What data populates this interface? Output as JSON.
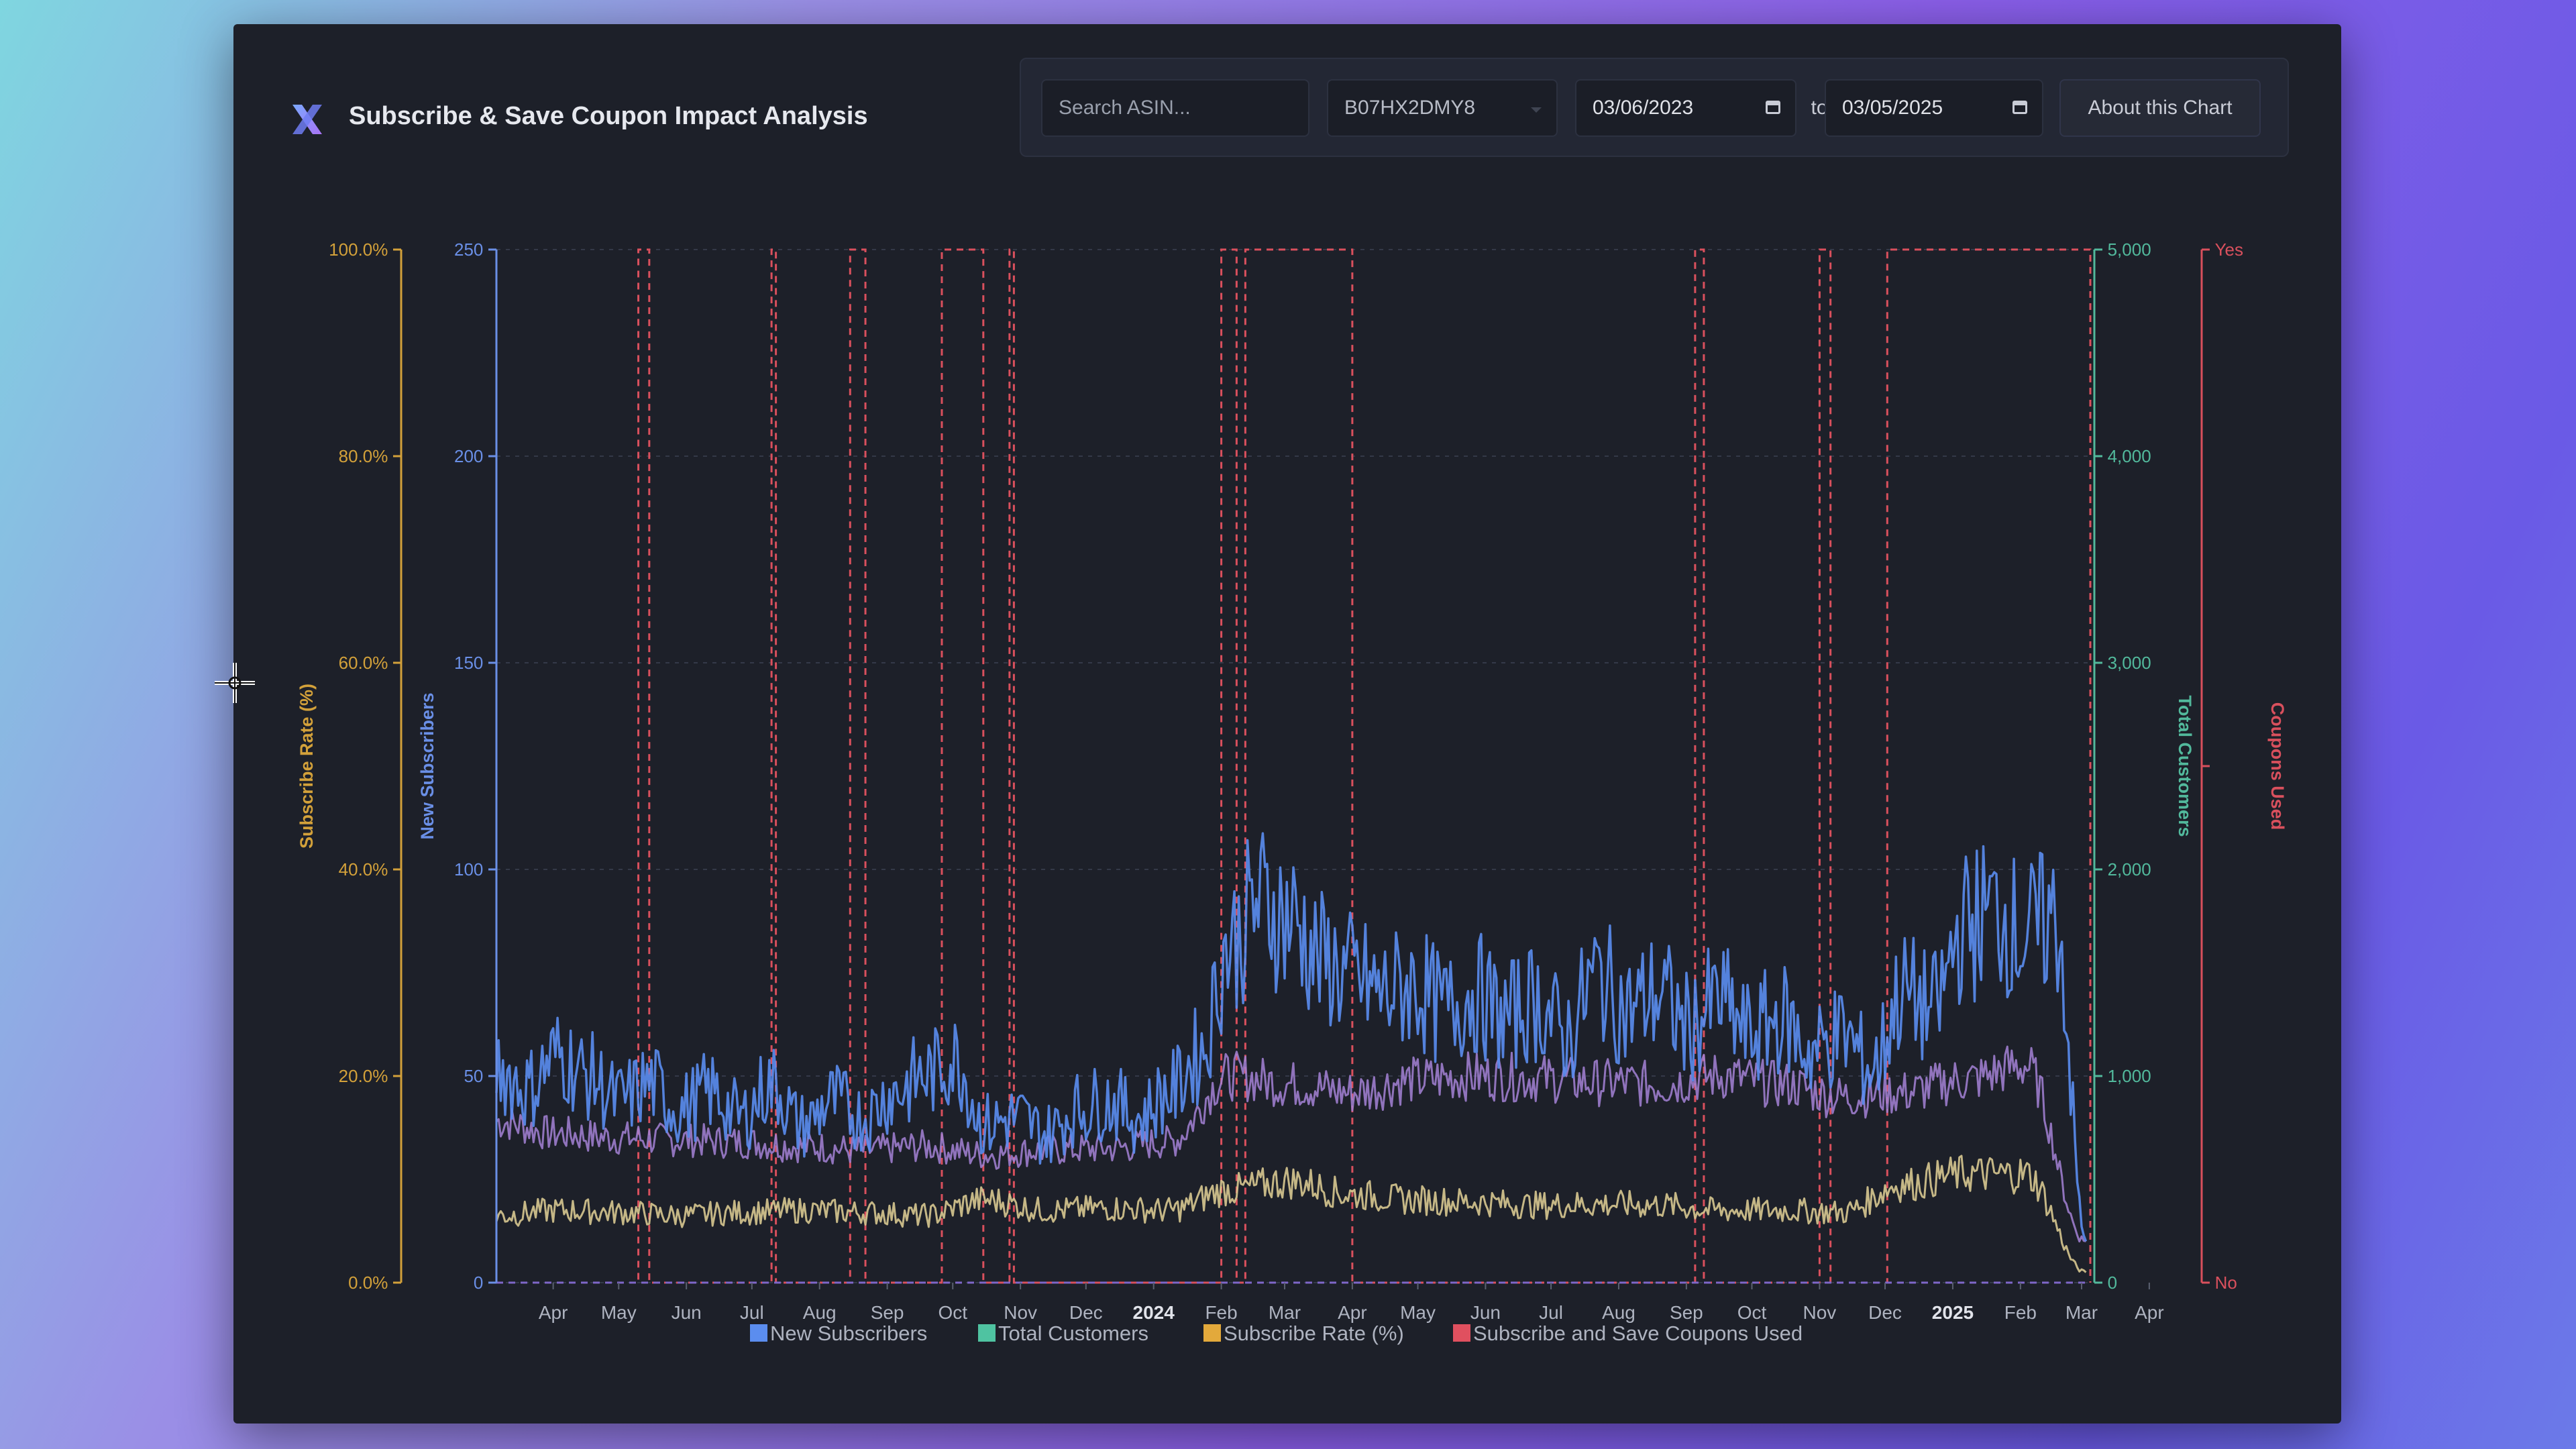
{
  "header": {
    "title": "Subscribe & Save Coupon Impact Analysis",
    "logo_icon": "x-logo-icon"
  },
  "toolbar": {
    "search_placeholder": "Search ASIN...",
    "asin_value": "B07HX2DMY8",
    "start_date": "03/06/2023",
    "end_date": "03/05/2025",
    "to_label": "to",
    "about_label": "About this Chart"
  },
  "colors": {
    "new_subscribers": "#5b8def",
    "total_customers": "#4fc3a1",
    "subscribe_rate": "#e3a93b",
    "coupons": "#e0505f",
    "subscribe_rate_line": "#d8c890",
    "total_customers_line": "#a583d6"
  },
  "chart_data": {
    "type": "line",
    "title": "",
    "x_range": [
      "2023-03-06",
      "2025-03-05"
    ],
    "x_ticks": [
      {
        "label": "Apr",
        "date": "2023-04-01",
        "bold": false
      },
      {
        "label": "May",
        "date": "2023-05-01",
        "bold": false
      },
      {
        "label": "Jun",
        "date": "2023-06-01",
        "bold": false
      },
      {
        "label": "Jul",
        "date": "2023-07-01",
        "bold": false
      },
      {
        "label": "Aug",
        "date": "2023-08-01",
        "bold": false
      },
      {
        "label": "Sep",
        "date": "2023-09-01",
        "bold": false
      },
      {
        "label": "Oct",
        "date": "2023-10-01",
        "bold": false
      },
      {
        "label": "Nov",
        "date": "2023-11-01",
        "bold": false
      },
      {
        "label": "Dec",
        "date": "2023-12-01",
        "bold": false
      },
      {
        "label": "2024",
        "date": "2024-01-01",
        "bold": true
      },
      {
        "label": "Feb",
        "date": "2024-02-01",
        "bold": false
      },
      {
        "label": "Mar",
        "date": "2024-03-01",
        "bold": false
      },
      {
        "label": "Apr",
        "date": "2024-04-01",
        "bold": false
      },
      {
        "label": "May",
        "date": "2024-05-01",
        "bold": false
      },
      {
        "label": "Jun",
        "date": "2024-06-01",
        "bold": false
      },
      {
        "label": "Jul",
        "date": "2024-07-01",
        "bold": false
      },
      {
        "label": "Aug",
        "date": "2024-08-01",
        "bold": false
      },
      {
        "label": "Sep",
        "date": "2024-09-01",
        "bold": false
      },
      {
        "label": "Oct",
        "date": "2024-10-01",
        "bold": false
      },
      {
        "label": "Nov",
        "date": "2024-11-01",
        "bold": false
      },
      {
        "label": "Dec",
        "date": "2024-12-01",
        "bold": false
      },
      {
        "label": "2025",
        "date": "2025-01-01",
        "bold": true
      },
      {
        "label": "Feb",
        "date": "2025-02-01",
        "bold": false
      },
      {
        "label": "Mar",
        "date": "2025-03-01",
        "bold": false
      },
      {
        "label": "Apr",
        "date": "2025-04-01",
        "bold": false
      }
    ],
    "axes": {
      "subscribe_rate": {
        "label": "Subscribe Rate (%)",
        "range": [
          0,
          100
        ],
        "ticks": [
          "0.0%",
          "20.0%",
          "40.0%",
          "60.0%",
          "80.0%",
          "100.0%"
        ]
      },
      "new_subscribers": {
        "label": "New Subscribers",
        "range": [
          0,
          250
        ],
        "ticks": [
          "0",
          "50",
          "100",
          "150",
          "200",
          "250"
        ]
      },
      "total_customers": {
        "label": "Total Customers",
        "range": [
          0,
          5000
        ],
        "ticks": [
          "0",
          "1,000",
          "2,000",
          "3,000",
          "4,000",
          "5,000"
        ]
      },
      "coupons": {
        "label": "Coupons Used",
        "range": [
          0,
          1
        ],
        "ticks": [
          "No",
          "Yes"
        ]
      }
    },
    "legend": {
      "placement": "bottom",
      "entries": [
        "New Subscribers",
        "Total Customers",
        "Subscribe Rate (%)",
        "Subscribe and Save Coupons Used"
      ]
    },
    "coupon_periods": [
      [
        "2023-05-10",
        "2023-05-15"
      ],
      [
        "2023-07-10",
        "2023-07-12"
      ],
      [
        "2023-08-15",
        "2023-08-22"
      ],
      [
        "2023-09-26",
        "2023-10-15"
      ],
      [
        "2023-10-27",
        "2023-10-29"
      ],
      [
        "2024-02-01",
        "2024-02-08"
      ],
      [
        "2024-02-12",
        "2024-04-01"
      ],
      [
        "2024-09-05",
        "2024-09-09"
      ],
      [
        "2024-11-01",
        "2024-11-06"
      ],
      [
        "2024-12-02",
        "2025-03-05"
      ]
    ],
    "series": [
      {
        "name": "New Subscribers",
        "axis": "new_subscribers",
        "x": [
          "2023-03-06",
          "2023-03-20",
          "2023-04-03",
          "2023-04-17",
          "2023-05-01",
          "2023-05-15",
          "2023-05-29",
          "2023-06-12",
          "2023-06-26",
          "2023-07-10",
          "2023-07-24",
          "2023-08-07",
          "2023-08-21",
          "2023-09-04",
          "2023-09-18",
          "2023-10-02",
          "2023-10-16",
          "2023-10-30",
          "2023-11-13",
          "2023-11-27",
          "2023-12-11",
          "2023-12-25",
          "2024-01-08",
          "2024-01-22",
          "2024-02-05",
          "2024-02-19",
          "2024-03-04",
          "2024-03-18",
          "2024-04-01",
          "2024-04-15",
          "2024-04-29",
          "2024-05-13",
          "2024-05-27",
          "2024-06-10",
          "2024-06-24",
          "2024-07-08",
          "2024-07-22",
          "2024-08-05",
          "2024-08-19",
          "2024-09-02",
          "2024-09-16",
          "2024-09-30",
          "2024-10-14",
          "2024-10-28",
          "2024-11-11",
          "2024-11-25",
          "2024-12-09",
          "2024-12-23",
          "2025-01-06",
          "2025-01-20",
          "2025-02-03",
          "2025-02-17",
          "2025-03-03"
        ],
        "values": [
          52,
          47,
          55,
          50,
          44,
          48,
          42,
          46,
          40,
          48,
          38,
          44,
          40,
          46,
          50,
          54,
          38,
          40,
          36,
          42,
          44,
          40,
          46,
          55,
          82,
          92,
          88,
          78,
          74,
          70,
          72,
          66,
          70,
          64,
          68,
          60,
          74,
          66,
          70,
          62,
          68,
          60,
          64,
          56,
          60,
          52,
          70,
          66,
          86,
          90,
          84,
          88,
          10
        ]
      },
      {
        "name": "Total Customers",
        "axis": "total_customers",
        "x": [
          "2023-03-06",
          "2023-04-03",
          "2023-05-01",
          "2023-05-29",
          "2023-06-26",
          "2023-07-24",
          "2023-08-21",
          "2023-09-18",
          "2023-10-16",
          "2023-11-13",
          "2023-12-11",
          "2024-01-08",
          "2024-02-05",
          "2024-03-04",
          "2024-04-01",
          "2024-04-29",
          "2024-05-27",
          "2024-06-24",
          "2024-07-22",
          "2024-08-19",
          "2024-09-16",
          "2024-10-14",
          "2024-11-11",
          "2024-12-09",
          "2025-01-06",
          "2025-02-03",
          "2025-03-03"
        ],
        "values": [
          780,
          720,
          700,
          690,
          680,
          660,
          640,
          660,
          620,
          640,
          650,
          680,
          1000,
          960,
          920,
          980,
          1000,
          990,
          970,
          960,
          1000,
          960,
          900,
          920,
          980,
          1050,
          200
        ]
      },
      {
        "name": "Subscribe Rate (%)",
        "axis": "subscribe_rate",
        "x": [
          "2023-03-06",
          "2023-04-03",
          "2023-05-01",
          "2023-05-29",
          "2023-06-26",
          "2023-07-24",
          "2023-08-21",
          "2023-09-18",
          "2023-10-16",
          "2023-11-13",
          "2023-12-11",
          "2024-01-08",
          "2024-02-05",
          "2024-03-04",
          "2024-04-01",
          "2024-04-29",
          "2024-05-27",
          "2024-06-24",
          "2024-07-22",
          "2024-08-19",
          "2024-09-16",
          "2024-10-14",
          "2024-11-11",
          "2024-12-09",
          "2025-01-06",
          "2025-02-03",
          "2025-03-03"
        ],
        "values": [
          6.5,
          7,
          6.8,
          6.5,
          6.8,
          7,
          6.8,
          6.5,
          8,
          7,
          7.2,
          7,
          9,
          9.8,
          8.5,
          8,
          7.8,
          7.5,
          7.6,
          7.5,
          7,
          7,
          6.8,
          9.5,
          10.5,
          10.5,
          1
        ]
      }
    ]
  }
}
